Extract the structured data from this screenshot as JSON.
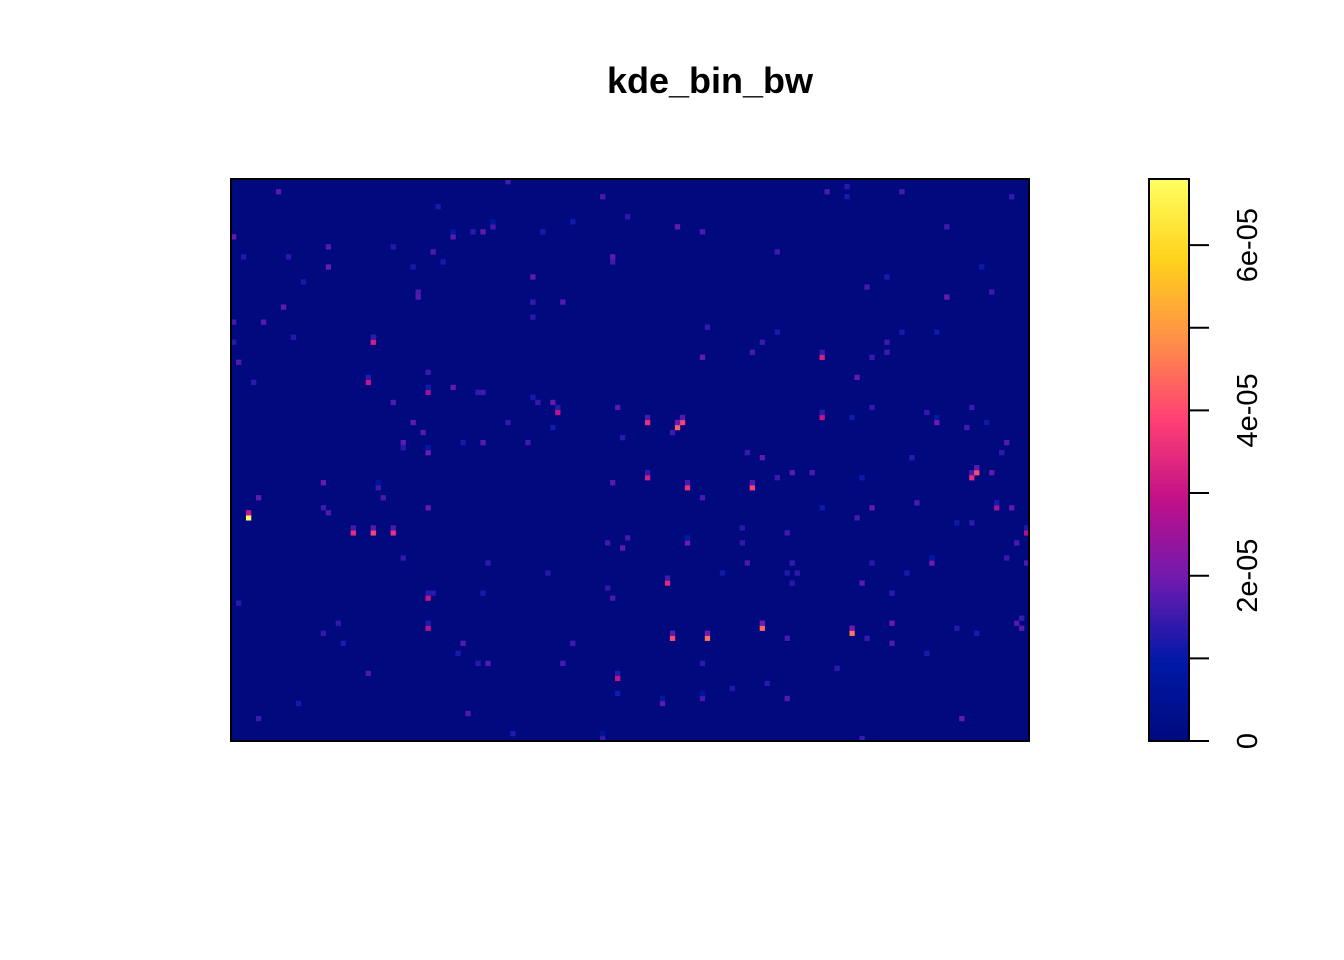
{
  "chart_data": {
    "type": "heatmap",
    "title": "kde_bin_bw",
    "xlabel": "",
    "ylabel": "",
    "background_value": 0,
    "colorbar": {
      "range": [
        0,
        6.8e-05
      ],
      "ticks": [
        0,
        1e-05,
        2e-05,
        3e-05,
        4e-05,
        5e-05,
        6e-05
      ],
      "tick_labels": [
        {
          "value": 0,
          "label": "0"
        },
        {
          "value": 2e-05,
          "label": "2e-05"
        },
        {
          "value": 4e-05,
          "label": "4e-05"
        },
        {
          "value": 6e-05,
          "label": "6e-05"
        }
      ],
      "colors": [
        "#000a7e",
        "#0019a8",
        "#6d1ab0",
        "#c0108a",
        "#ff3f74",
        "#ff8f48",
        "#ffd21b",
        "#ffff60"
      ]
    },
    "grid": {
      "cols": 160,
      "rows": 112
    },
    "hotspots": [
      {
        "col": 3,
        "row": 67,
        "value": 6.8e-05
      },
      {
        "col": 74,
        "row": 112,
        "value": 1.5e-05
      },
      {
        "col": 44,
        "row": 11,
        "value": 1.8e-05
      },
      {
        "col": 52,
        "row": 9,
        "value": 1.6e-05
      },
      {
        "col": 27,
        "row": 40,
        "value": 3e-05
      },
      {
        "col": 39,
        "row": 42,
        "value": 2.5e-05
      },
      {
        "col": 28,
        "row": 32,
        "value": 3.2e-05
      },
      {
        "col": 39,
        "row": 54,
        "value": 2e-05
      },
      {
        "col": 24,
        "row": 70,
        "value": 3.5e-05
      },
      {
        "col": 28,
        "row": 70,
        "value": 3.9e-05
      },
      {
        "col": 32,
        "row": 70,
        "value": 3.6e-05
      },
      {
        "col": 29,
        "row": 61,
        "value": 1.5e-05
      },
      {
        "col": 65,
        "row": 46,
        "value": 3e-05
      },
      {
        "col": 83,
        "row": 48,
        "value": 3.6e-05
      },
      {
        "col": 90,
        "row": 48,
        "value": 3.9e-05
      },
      {
        "col": 89,
        "row": 49,
        "value": 4.3e-05
      },
      {
        "col": 83,
        "row": 59,
        "value": 3.2e-05
      },
      {
        "col": 91,
        "row": 61,
        "value": 3.6e-05
      },
      {
        "col": 104,
        "row": 61,
        "value": 3.9e-05
      },
      {
        "col": 118,
        "row": 35,
        "value": 3.2e-05
      },
      {
        "col": 118,
        "row": 47,
        "value": 3e-05
      },
      {
        "col": 141,
        "row": 48,
        "value": 2e-05
      },
      {
        "col": 148,
        "row": 59,
        "value": 3.5e-05
      },
      {
        "col": 149,
        "row": 58,
        "value": 4e-05
      },
      {
        "col": 153,
        "row": 65,
        "value": 2.6e-05
      },
      {
        "col": 159,
        "row": 70,
        "value": 2.8e-05
      },
      {
        "col": 140,
        "row": 76,
        "value": 2e-05
      },
      {
        "col": 39,
        "row": 83,
        "value": 3e-05
      },
      {
        "col": 39,
        "row": 89,
        "value": 2.8e-05
      },
      {
        "col": 87,
        "row": 80,
        "value": 3.4e-05
      },
      {
        "col": 88,
        "row": 91,
        "value": 4e-05
      },
      {
        "col": 95,
        "row": 91,
        "value": 4.5e-05
      },
      {
        "col": 106,
        "row": 89,
        "value": 4.4e-05
      },
      {
        "col": 124,
        "row": 90,
        "value": 4.6e-05
      },
      {
        "col": 77,
        "row": 99,
        "value": 3e-05
      },
      {
        "col": 91,
        "row": 72,
        "value": 2e-05
      },
      {
        "col": 86,
        "row": 104,
        "value": 1.8e-05
      },
      {
        "col": 94,
        "row": 103,
        "value": 1.6e-05
      }
    ]
  }
}
